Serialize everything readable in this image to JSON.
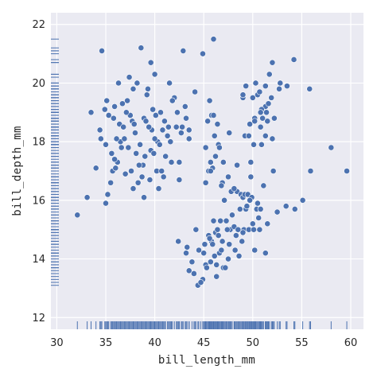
{
  "chart_data": {
    "type": "scatter",
    "title": "",
    "xlabel": "bill_length_mm",
    "ylabel": "bill_depth_mm",
    "xlim": [
      29.4,
      61.3
    ],
    "ylim": [
      11.6,
      22.4
    ],
    "x_ticks": [
      30,
      35,
      40,
      45,
      50,
      55,
      60
    ],
    "y_ticks": [
      12,
      14,
      16,
      18,
      20,
      22
    ],
    "grid": true,
    "rug": true,
    "colors": {
      "background": "#eaeaf2",
      "grid": "#ffffff",
      "point": "#4c72b0",
      "point_edge": "#ffffff",
      "text": "#262626"
    },
    "series": [
      {
        "x": [
          32.1,
          33.1,
          33.5,
          34.0,
          34.4,
          34.5,
          34.6,
          35.0,
          35.0,
          35.1,
          35.2,
          35.3,
          35.5,
          35.7,
          35.9,
          36.0,
          36.2,
          36.4,
          36.5,
          36.6,
          36.7,
          36.8,
          37.0,
          37.2,
          37.3,
          37.5,
          37.6,
          37.7,
          37.8,
          37.9,
          38.1,
          38.2,
          38.5,
          38.6,
          38.8,
          38.9,
          39.0,
          39.1,
          39.2,
          39.5,
          39.6,
          39.7,
          39.8,
          40.1,
          40.2,
          40.3,
          40.5,
          40.6,
          40.8,
          40.9,
          41.1,
          41.3,
          41.4,
          41.5,
          41.6,
          42.0,
          42.2,
          42.5,
          42.7,
          42.8,
          43.1,
          43.2,
          44.1,
          45.8,
          46.0,
          35.6,
          36.9,
          38.4,
          39.3,
          40.0,
          41.8,
          37.1,
          38.0,
          39.4,
          40.7,
          42.3,
          36.1,
          34.9,
          38.7,
          41.0,
          39.9,
          37.4,
          35.8,
          40.4,
          43.5,
          36.3,
          38.3,
          40.0,
          41.7,
          37.8,
          39.6,
          42.9,
          44.9,
          35.9,
          38.9
        ],
        "y": [
          15.5,
          16.1,
          19.0,
          17.1,
          18.4,
          18.1,
          21.1,
          17.9,
          15.9,
          19.4,
          16.2,
          18.9,
          16.6,
          17.0,
          19.2,
          17.1,
          17.3,
          18.6,
          18.0,
          17.8,
          19.3,
          18.5,
          16.9,
          19.4,
          17.8,
          18.9,
          17.0,
          18.7,
          16.4,
          18.6,
          17.6,
          20.0,
          17.9,
          21.2,
          17.2,
          18.8,
          17.5,
          18.7,
          19.6,
          16.7,
          17.7,
          18.4,
          19.1,
          18.9,
          17.0,
          18.0,
          17.9,
          19.0,
          18.4,
          16.8,
          17.5,
          18.2,
          18.5,
          20.0,
          18.0,
          19.5,
          18.5,
          17.3,
          18.3,
          18.5,
          19.2,
          18.8,
          19.7,
          18.9,
          21.5,
          17.6,
          18.1,
          17.2,
          19.8,
          20.3,
          19.4,
          19.0,
          18.3,
          18.5,
          17.0,
          19.0,
          18.1,
          19.1,
          16.8,
          18.7,
          17.6,
          20.2,
          18.8,
          16.4,
          18.4,
          20.0,
          16.6,
          18.1,
          17.3,
          19.8,
          20.7,
          21.1,
          21.0,
          17.4,
          16.1
        ]
      },
      {
        "x": [
          42.4,
          43.2,
          43.5,
          44.0,
          44.5,
          44.9,
          45.1,
          45.2,
          45.3,
          45.5,
          45.7,
          45.8,
          46.0,
          46.1,
          46.2,
          46.4,
          46.5,
          46.6,
          46.8,
          46.9,
          47.0,
          47.2,
          47.3,
          47.5,
          47.6,
          47.7,
          47.8,
          48.1,
          48.2,
          48.4,
          48.5,
          48.6,
          48.7,
          48.8,
          49.0,
          49.1,
          49.2,
          49.3,
          49.4,
          49.5,
          49.6,
          49.8,
          49.9,
          50.0,
          50.1,
          50.2,
          50.4,
          50.5,
          50.7,
          50.8,
          51.1,
          51.3,
          51.5,
          52.1,
          52.5,
          53.4,
          54.3,
          55.1,
          55.9,
          59.6,
          43.3,
          44.4,
          45.0,
          46.3,
          47.4,
          48.3,
          49.7,
          50.6,
          44.7,
          46.7,
          45.9,
          47.9,
          43.8,
          48.9,
          46.3,
          49.0,
          44.2,
          47.1,
          45.6
        ],
        "y": [
          14.6,
          14.2,
          13.6,
          13.5,
          14.3,
          13.3,
          14.5,
          13.8,
          13.7,
          14.8,
          13.9,
          14.6,
          15.3,
          14.1,
          14.9,
          15.0,
          14.8,
          14.2,
          14.3,
          14.6,
          13.7,
          13.7,
          15.3,
          14.0,
          14.5,
          15.0,
          16.3,
          15.1,
          14.3,
          16.3,
          15.0,
          14.1,
          15.7,
          16.2,
          16.1,
          15.0,
          16.2,
          15.7,
          15.8,
          16.2,
          15.0,
          16.8,
          16.1,
          15.2,
          15.0,
          14.3,
          15.7,
          15.9,
          15.0,
          15.7,
          16.5,
          14.2,
          15.2,
          17.0,
          15.6,
          15.8,
          15.7,
          16.0,
          17.0,
          17.0,
          14.4,
          13.1,
          14.2,
          13.8,
          15.0,
          14.8,
          16.0,
          15.4,
          13.2,
          15.3,
          14.5,
          15.5,
          13.9,
          14.6,
          13.4,
          14.9,
          15.0,
          16.0,
          14.7
        ]
      },
      {
        "x": [
          46.5,
          50.0,
          51.3,
          45.4,
          52.7,
          45.2,
          46.1,
          51.3,
          46.0,
          51.3,
          46.6,
          51.7,
          47.0,
          52.0,
          45.9,
          50.5,
          50.3,
          58.0,
          46.4,
          49.2,
          48.4,
          42.5,
          51.0,
          49.7,
          47.5,
          47.6,
          52.0,
          46.9,
          53.5,
          49.0,
          46.2,
          50.9,
          45.5,
          50.9,
          50.8,
          50.1,
          49.0,
          51.5,
          49.8,
          48.1,
          51.4,
          45.7,
          50.7,
          42.5,
          52.2,
          45.2,
          49.3,
          50.2,
          45.6,
          51.9,
          46.8,
          45.7,
          55.8,
          43.5,
          49.6,
          50.8,
          50.2,
          52.8,
          54.2,
          51.6
        ],
        "y": [
          17.9,
          19.5,
          19.2,
          18.7,
          19.8,
          17.8,
          18.2,
          18.2,
          18.9,
          19.9,
          17.8,
          20.3,
          17.3,
          18.1,
          17.1,
          19.6,
          20.0,
          17.8,
          18.6,
          18.2,
          17.2,
          16.7,
          18.8,
          18.6,
          16.8,
          18.3,
          20.7,
          16.6,
          19.9,
          19.5,
          17.5,
          19.1,
          17.0,
          17.9,
          18.5,
          17.9,
          19.6,
          18.7,
          17.3,
          16.4,
          19.0,
          17.3,
          19.7,
          17.3,
          18.8,
          16.6,
          19.9,
          18.8,
          19.4,
          19.5,
          16.5,
          17.0,
          19.8,
          18.1,
          18.2,
          19.0,
          18.7,
          20.0,
          20.8,
          19.3
        ]
      }
    ]
  }
}
